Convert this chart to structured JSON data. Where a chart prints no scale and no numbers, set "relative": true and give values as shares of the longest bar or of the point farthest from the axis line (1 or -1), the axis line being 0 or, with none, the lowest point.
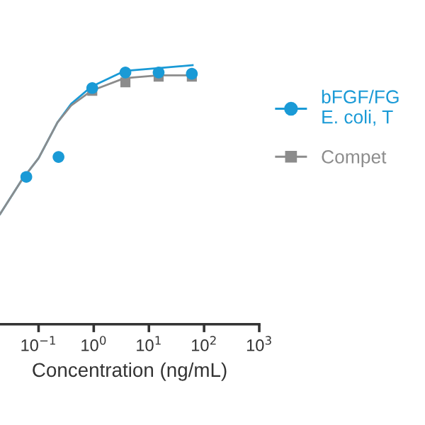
{
  "chart_data": {
    "type": "scatter",
    "xlabel": "Concentration (ng/mL)",
    "relative": true,
    "log": "x",
    "xlim": [
      0.02,
      1000
    ],
    "xticks": [
      {
        "value": 0.1,
        "label": "10$^{−1}$"
      },
      {
        "value": 1,
        "label": "10$^{0}$"
      },
      {
        "value": 10,
        "label": "10$^{1}$"
      },
      {
        "value": 100,
        "label": "10$^{2}$"
      },
      {
        "value": 1000,
        "label": "10$^{3}$"
      }
    ],
    "legend": "right",
    "grid": false,
    "series": [
      {
        "name": "bFGF/FG\nE. coli, T",
        "marker": "circle",
        "color": "#1a9ad6",
        "x": [
          0.06,
          0.23,
          0.94,
          3.75,
          15,
          60
        ],
        "values": [
          0.569,
          0.646,
          0.912,
          0.972,
          0.972,
          0.967
        ]
      },
      {
        "name": "Compet",
        "marker": "square",
        "color": "#8c8c8c",
        "x": [
          0.94,
          3.75,
          15,
          60
        ],
        "values": [
          0.901,
          0.934,
          0.956,
          0.956
        ]
      },
      {
        "type": "line",
        "marker": "none",
        "color": "#1a9ad6",
        "x": [
          0.02,
          0.05,
          0.1,
          0.22,
          0.39,
          0.9,
          3.6,
          15,
          62
        ],
        "values": [
          0.425,
          0.558,
          0.641,
          0.779,
          0.851,
          0.917,
          0.978,
          0.989,
          1
        ]
      },
      {
        "type": "line",
        "marker": "none",
        "color": "#8c8c8c",
        "x": [
          0.02,
          0.05,
          0.1,
          0.22,
          0.39,
          0.9,
          3.6,
          15,
          62
        ],
        "values": [
          0.425,
          0.558,
          0.641,
          0.779,
          0.845,
          0.901,
          0.95,
          0.961,
          0.961
        ]
      }
    ]
  }
}
